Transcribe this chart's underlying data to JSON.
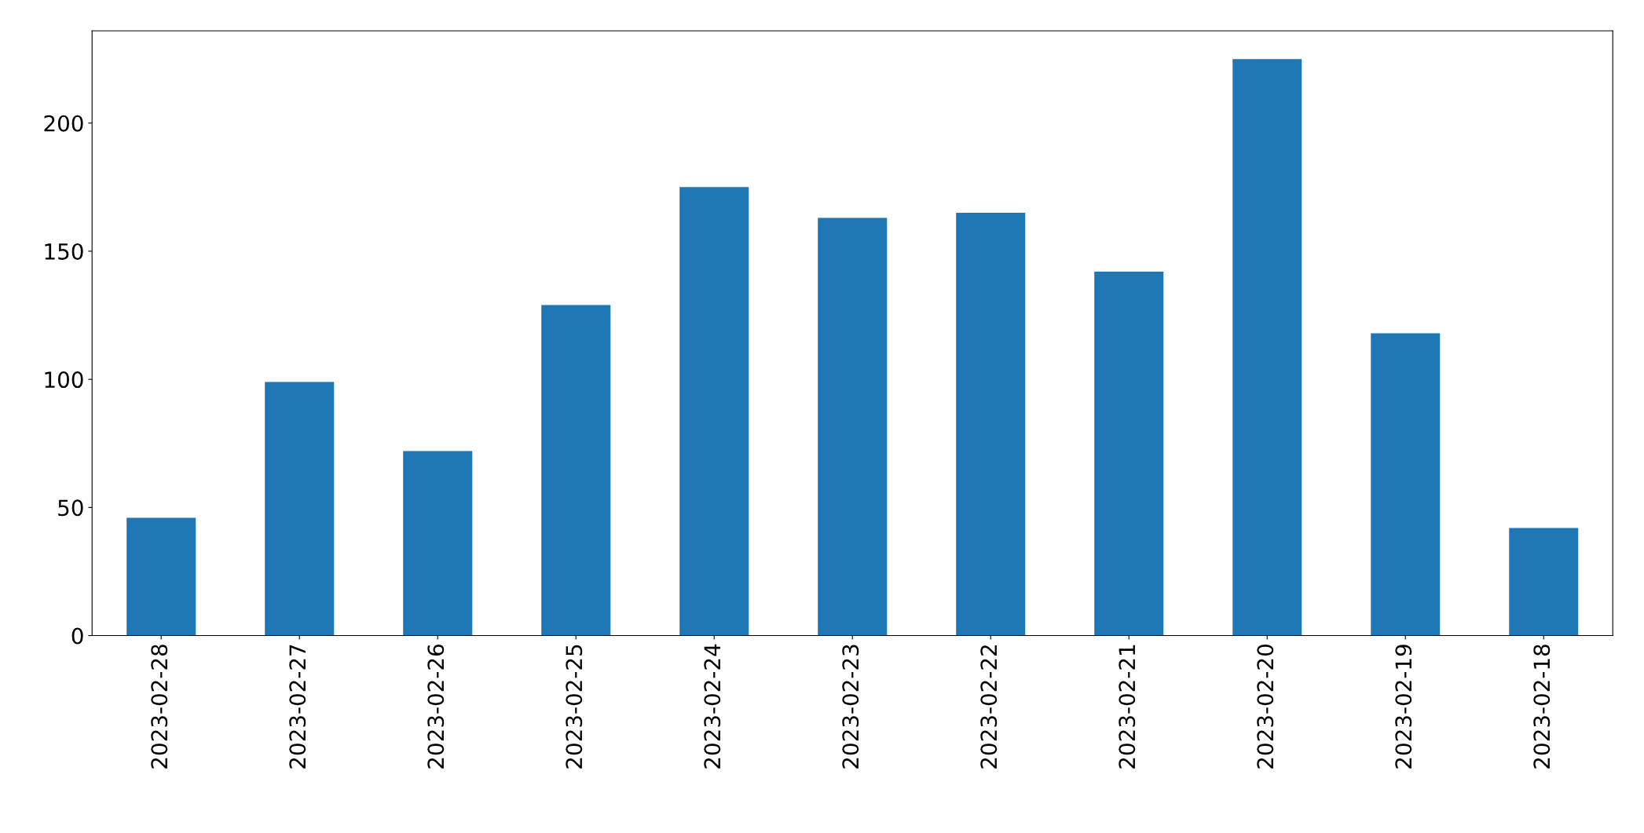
{
  "chart_data": {
    "type": "bar",
    "categories": [
      "2023-02-28",
      "2023-02-27",
      "2023-02-26",
      "2023-02-25",
      "2023-02-24",
      "2023-02-23",
      "2023-02-22",
      "2023-02-21",
      "2023-02-20",
      "2023-02-19",
      "2023-02-18"
    ],
    "values": [
      46,
      99,
      72,
      129,
      175,
      163,
      165,
      142,
      225,
      118,
      42
    ],
    "color": "#1f77b4",
    "ylim": [
      0,
      236
    ],
    "yticks": [
      0,
      50,
      100,
      150,
      200
    ],
    "grid": false,
    "legend": false
  }
}
